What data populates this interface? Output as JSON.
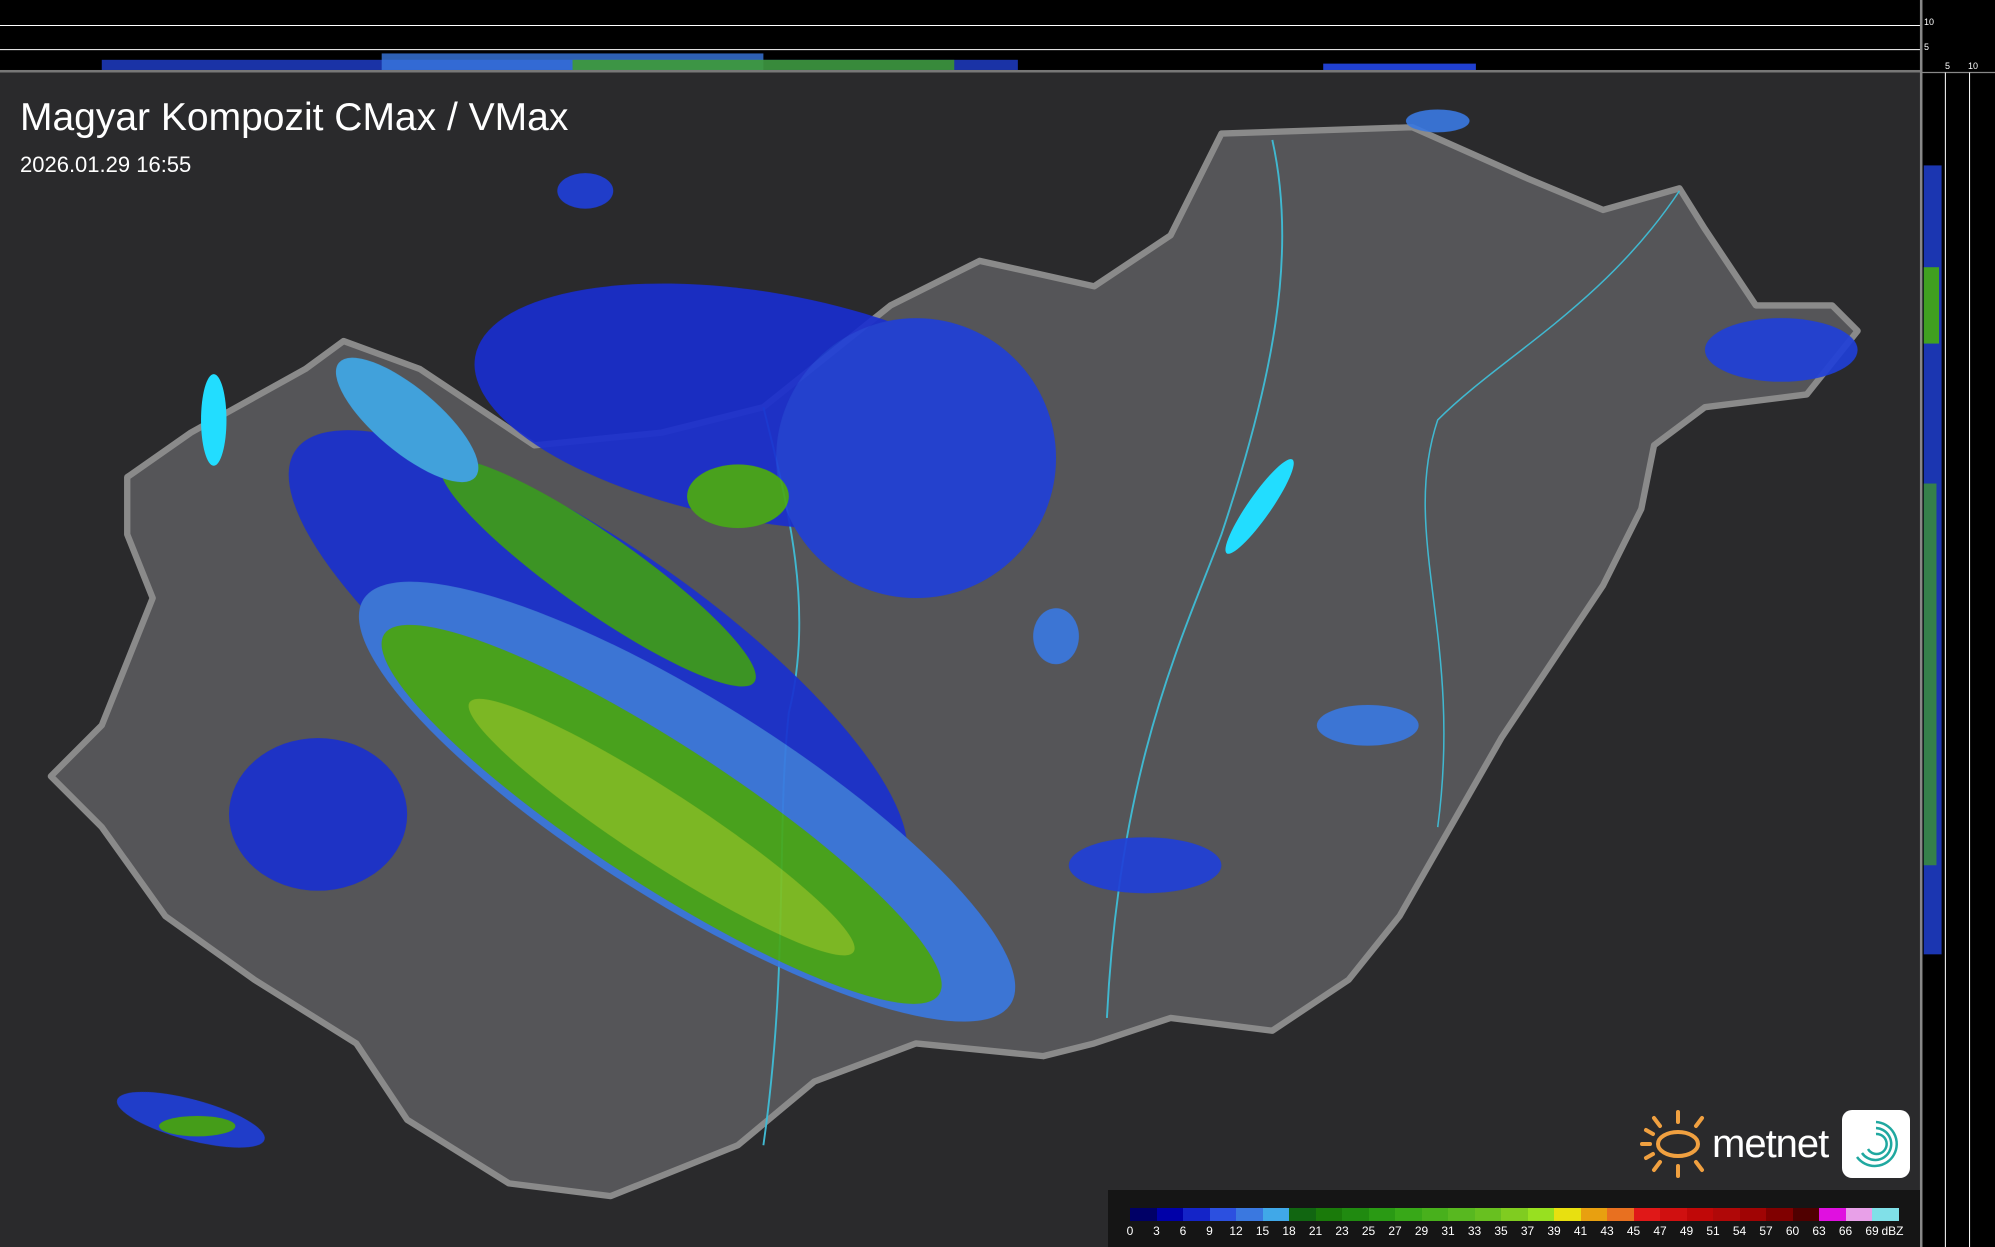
{
  "header": {
    "title": "Magyar Kompozit CMax / VMax",
    "timestamp": "2026.01.29 16:55"
  },
  "profile_axes": {
    "vertical_ticks": [
      "10",
      "5"
    ],
    "horizontal_ticks": [
      "5",
      "10"
    ]
  },
  "legend": {
    "unit": "dBZ",
    "labels": [
      "0",
      "3",
      "6",
      "9",
      "12",
      "15",
      "18",
      "21",
      "23",
      "25",
      "27",
      "29",
      "31",
      "33",
      "35",
      "37",
      "39",
      "41",
      "43",
      "45",
      "47",
      "49",
      "51",
      "54",
      "57",
      "60",
      "63",
      "66",
      "69"
    ],
    "colors": [
      "#000066",
      "#0000a8",
      "#1424c8",
      "#2c50e0",
      "#3a78e0",
      "#40a8e8",
      "#116611",
      "#1a7a0a",
      "#208a10",
      "#2a9a14",
      "#38a818",
      "#48b01c",
      "#58b820",
      "#68c020",
      "#80cc20",
      "#98e020",
      "#e8e010",
      "#e8a010",
      "#e87020",
      "#e01818",
      "#d01010",
      "#c00808",
      "#b00808",
      "#a00404",
      "#800000",
      "#500000",
      "#e010e0",
      "#e8a0e8",
      "#80e0e8"
    ]
  },
  "branding": {
    "logo_text": "metnet",
    "logo_color": "#f0a040",
    "icon": "spiral-app-icon"
  },
  "colors": {
    "land": "#555558",
    "background": "#2a2a2c",
    "border": "#8a8a8a",
    "lakes": "#22ddff",
    "rivers": "#40b8d0"
  }
}
